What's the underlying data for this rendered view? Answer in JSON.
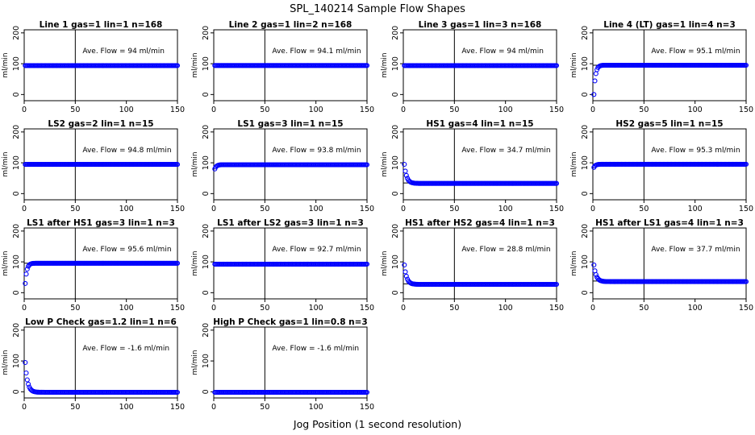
{
  "figure": {
    "title": "SPL_140214  Sample Flow Shapes",
    "xlabel": "Jog Position (1 second resolution)"
  },
  "chart_data": [
    {
      "type": "scatter",
      "title": "Line 1 gas=1 lin=1 n=168",
      "ylabel": "ml/min",
      "annotation": "Ave. Flow = 94  ml/min",
      "xlim": [
        0,
        150
      ],
      "ylim": [
        -20,
        210
      ],
      "yticks": [
        0,
        100,
        200
      ],
      "xticks": [
        0,
        50,
        100,
        150
      ],
      "vline_x": 50,
      "hline_y": null,
      "marker_color": "#0000ff",
      "series": [
        {
          "shape": "flat",
          "level": 94,
          "x_start": 1,
          "x_end": 150
        }
      ]
    },
    {
      "type": "scatter",
      "title": "Line 2 gas=1 lin=2 n=168",
      "ylabel": "ml/min",
      "annotation": "Ave. Flow = 94.1  ml/min",
      "xlim": [
        0,
        150
      ],
      "ylim": [
        -20,
        210
      ],
      "yticks": [
        0,
        100,
        200
      ],
      "xticks": [
        0,
        50,
        100,
        150
      ],
      "vline_x": 50,
      "hline_y": null,
      "marker_color": "#0000ff",
      "series": [
        {
          "shape": "flat",
          "level": 94.1,
          "x_start": 1,
          "x_end": 150
        }
      ]
    },
    {
      "type": "scatter",
      "title": "Line 3 gas=1 lin=3 n=168",
      "ylabel": "ml/min",
      "annotation": "Ave. Flow = 94  ml/min",
      "xlim": [
        0,
        150
      ],
      "ylim": [
        -20,
        210
      ],
      "yticks": [
        0,
        100,
        200
      ],
      "xticks": [
        0,
        50,
        100,
        150
      ],
      "vline_x": 50,
      "hline_y": null,
      "marker_color": "#0000ff",
      "series": [
        {
          "shape": "flat",
          "level": 94,
          "x_start": 1,
          "x_end": 150
        }
      ]
    },
    {
      "type": "scatter",
      "title": "Line 4 (LT) gas=1 lin=4 n=3",
      "ylabel": "ml/min",
      "annotation": "Ave. Flow = 95.1  ml/min",
      "xlim": [
        0,
        150
      ],
      "ylim": [
        -20,
        210
      ],
      "yticks": [
        0,
        100,
        200
      ],
      "xticks": [
        0,
        50,
        100,
        150
      ],
      "vline_x": 50,
      "hline_y": 95.1,
      "marker_color": "#0000ff",
      "series": [
        {
          "shape": "rise",
          "start": 0,
          "level": 95.1,
          "x_start": 1,
          "x_end": 150
        }
      ]
    },
    {
      "type": "scatter",
      "title": "LS2 gas=2 lin=1 n=15",
      "ylabel": "ml/min",
      "annotation": "Ave. Flow = 94.8  ml/min",
      "xlim": [
        0,
        150
      ],
      "ylim": [
        -20,
        210
      ],
      "yticks": [
        0,
        100,
        200
      ],
      "xticks": [
        0,
        50,
        100,
        150
      ],
      "vline_x": 50,
      "hline_y": 94.8,
      "marker_color": "#0000ff",
      "series": [
        {
          "shape": "flat",
          "level": 94.8,
          "x_start": 1,
          "x_end": 150
        }
      ]
    },
    {
      "type": "scatter",
      "title": "LS1 gas=3 lin=1 n=15",
      "ylabel": "ml/min",
      "annotation": "Ave. Flow = 93.8  ml/min",
      "xlim": [
        0,
        150
      ],
      "ylim": [
        -20,
        210
      ],
      "yticks": [
        0,
        100,
        200
      ],
      "xticks": [
        0,
        50,
        100,
        150
      ],
      "vline_x": 50,
      "hline_y": null,
      "marker_color": "#0000ff",
      "series": [
        {
          "shape": "rise",
          "start": 80,
          "level": 93.8,
          "x_start": 1,
          "x_end": 150
        }
      ]
    },
    {
      "type": "scatter",
      "title": "HS1 gas=4 lin=1 n=15",
      "ylabel": "ml/min",
      "annotation": "Ave. Flow = 34.7  ml/min",
      "xlim": [
        0,
        150
      ],
      "ylim": [
        -20,
        210
      ],
      "yticks": [
        0,
        100,
        200
      ],
      "xticks": [
        0,
        50,
        100,
        150
      ],
      "vline_x": 50,
      "hline_y": 34.7,
      "marker_color": "#0000ff",
      "series": [
        {
          "shape": "decay",
          "start": 95,
          "level": 33,
          "x_start": 1,
          "x_end": 150
        }
      ]
    },
    {
      "type": "scatter",
      "title": "HS2 gas=5 lin=1 n=15",
      "ylabel": "ml/min",
      "annotation": "Ave. Flow = 95.3  ml/min",
      "xlim": [
        0,
        150
      ],
      "ylim": [
        -20,
        210
      ],
      "yticks": [
        0,
        100,
        200
      ],
      "xticks": [
        0,
        50,
        100,
        150
      ],
      "vline_x": 50,
      "hline_y": 95.3,
      "marker_color": "#0000ff",
      "series": [
        {
          "shape": "rise",
          "start": 85,
          "level": 95.3,
          "x_start": 1,
          "x_end": 150
        }
      ]
    },
    {
      "type": "scatter",
      "title": "LS1 after HS1 gas=3 lin=1 n=3",
      "ylabel": "ml/min",
      "annotation": "Ave. Flow = 95.6  ml/min",
      "xlim": [
        0,
        150
      ],
      "ylim": [
        -20,
        210
      ],
      "yticks": [
        0,
        100,
        200
      ],
      "xticks": [
        0,
        50,
        100,
        150
      ],
      "vline_x": 50,
      "hline_y": 95.6,
      "marker_color": "#0000ff",
      "series": [
        {
          "shape": "rise",
          "start": 30,
          "level": 95.6,
          "x_start": 1,
          "x_end": 150
        }
      ]
    },
    {
      "type": "scatter",
      "title": "LS1 after LS2 gas=3 lin=1 n=3",
      "ylabel": "ml/min",
      "annotation": "Ave. Flow = 92.7  ml/min",
      "xlim": [
        0,
        150
      ],
      "ylim": [
        -20,
        210
      ],
      "yticks": [
        0,
        100,
        200
      ],
      "xticks": [
        0,
        50,
        100,
        150
      ],
      "vline_x": 50,
      "hline_y": null,
      "marker_color": "#0000ff",
      "series": [
        {
          "shape": "flat",
          "level": 92.7,
          "x_start": 1,
          "x_end": 150
        }
      ]
    },
    {
      "type": "scatter",
      "title": "HS1 after HS2 gas=4 lin=1 n=3",
      "ylabel": "ml/min",
      "annotation": "Ave. Flow = 28.8  ml/min",
      "xlim": [
        0,
        150
      ],
      "ylim": [
        -20,
        210
      ],
      "yticks": [
        0,
        100,
        200
      ],
      "xticks": [
        0,
        50,
        100,
        150
      ],
      "vline_x": 50,
      "hline_y": 28.8,
      "marker_color": "#0000ff",
      "series": [
        {
          "shape": "decay",
          "start": 90,
          "level": 27,
          "x_start": 1,
          "x_end": 150
        }
      ]
    },
    {
      "type": "scatter",
      "title": "HS1 after LS1 gas=4 lin=1 n=3",
      "ylabel": "ml/min",
      "annotation": "Ave. Flow = 37.7  ml/min",
      "xlim": [
        0,
        150
      ],
      "ylim": [
        -20,
        210
      ],
      "yticks": [
        0,
        100,
        200
      ],
      "xticks": [
        0,
        50,
        100,
        150
      ],
      "vline_x": 50,
      "hline_y": 37.7,
      "marker_color": "#0000ff",
      "series": [
        {
          "shape": "decay",
          "start": 90,
          "level": 36,
          "x_start": 1,
          "x_end": 150
        }
      ]
    },
    {
      "type": "scatter",
      "title": "Low P Check gas=1.2 lin=1 n=6",
      "ylabel": "ml/min",
      "annotation": "Ave. Flow = -1.6  ml/min",
      "xlim": [
        0,
        150
      ],
      "ylim": [
        -20,
        210
      ],
      "yticks": [
        0,
        100,
        200
      ],
      "xticks": [
        0,
        50,
        100,
        150
      ],
      "vline_x": 50,
      "hline_y": null,
      "marker_color": "#0000ff",
      "series": [
        {
          "shape": "decay",
          "start": 95,
          "level": -1.6,
          "x_start": 1,
          "x_end": 150
        }
      ]
    },
    {
      "type": "scatter",
      "title": "High P Check gas=1 lin=0.8 n=3",
      "ylabel": "ml/min",
      "annotation": "Ave. Flow = -1.6  ml/min",
      "xlim": [
        0,
        150
      ],
      "ylim": [
        -20,
        210
      ],
      "yticks": [
        0,
        100,
        200
      ],
      "xticks": [
        0,
        50,
        100,
        150
      ],
      "vline_x": 50,
      "hline_y": null,
      "marker_color": "#0000ff",
      "series": [
        {
          "shape": "flat",
          "level": -1.6,
          "x_start": 1,
          "x_end": 150
        }
      ]
    }
  ]
}
